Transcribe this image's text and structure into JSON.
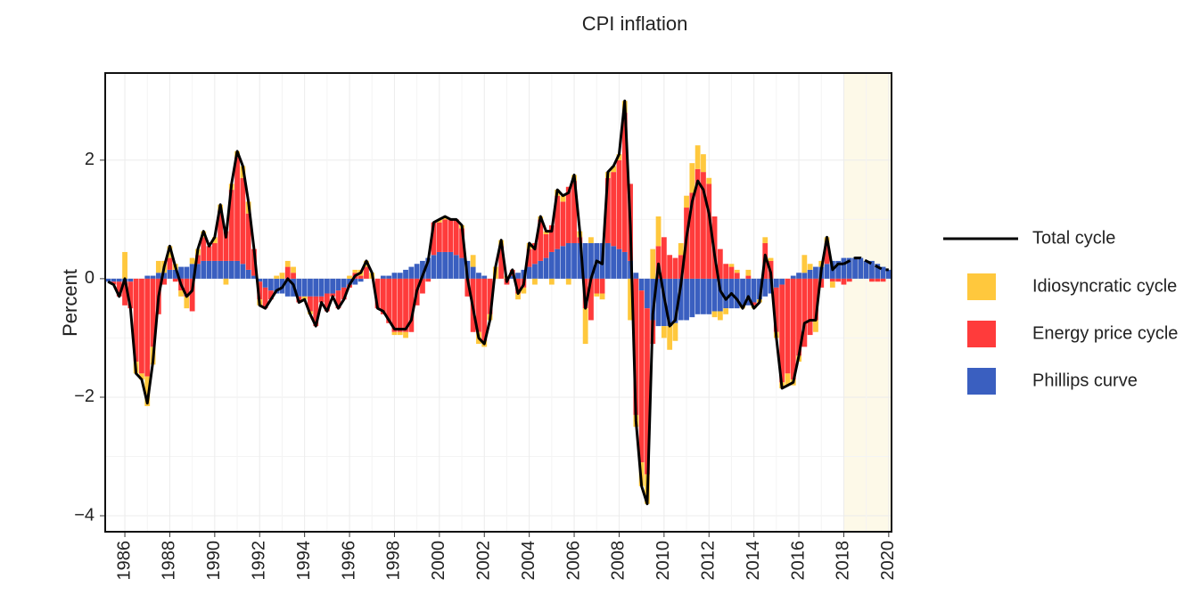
{
  "chart_data": {
    "type": "stacked-bar-line",
    "title": "CPI inflation",
    "y_label": "Percent",
    "xlim": [
      1985.125,
      2020.125
    ],
    "ylim": [
      -4.27,
      3.47
    ],
    "xticks": [
      1986,
      1988,
      1990,
      1992,
      1994,
      1996,
      1998,
      2000,
      2002,
      2004,
      2006,
      2008,
      2010,
      2012,
      2014,
      2016,
      2018,
      2020
    ],
    "yticks": [
      {
        "value": -4,
        "label": "−4"
      },
      {
        "value": -2,
        "label": "−2"
      },
      0,
      2
    ],
    "grid": true,
    "forecast_start": 2018,
    "forecast_color": "#fdf9e8",
    "legend": "right",
    "x": [
      1985.25,
      1985.5,
      1985.75,
      1986,
      1986.25,
      1986.5,
      1986.75,
      1987,
      1987.25,
      1987.5,
      1987.75,
      1988,
      1988.25,
      1988.5,
      1988.75,
      1989,
      1989.25,
      1989.5,
      1989.75,
      1990,
      1990.25,
      1990.5,
      1990.75,
      1991,
      1991.25,
      1991.5,
      1991.75,
      1992,
      1992.25,
      1992.5,
      1992.75,
      1993,
      1993.25,
      1993.5,
      1993.75,
      1994,
      1994.25,
      1994.5,
      1994.75,
      1995,
      1995.25,
      1995.5,
      1995.75,
      1996,
      1996.25,
      1996.5,
      1996.75,
      1997,
      1997.25,
      1997.5,
      1997.75,
      1998,
      1998.25,
      1998.5,
      1998.75,
      1999,
      1999.25,
      1999.5,
      1999.75,
      2000,
      2000.25,
      2000.5,
      2000.75,
      2001,
      2001.25,
      2001.5,
      2001.75,
      2002,
      2002.25,
      2002.5,
      2002.75,
      2003,
      2003.25,
      2003.5,
      2003.75,
      2004,
      2004.25,
      2004.5,
      2004.75,
      2005,
      2005.25,
      2005.5,
      2005.75,
      2006,
      2006.25,
      2006.5,
      2006.75,
      2007,
      2007.25,
      2007.5,
      2007.75,
      2008,
      2008.25,
      2008.5,
      2008.75,
      2009,
      2009.25,
      2009.5,
      2009.75,
      2010,
      2010.25,
      2010.5,
      2010.75,
      2011,
      2011.25,
      2011.5,
      2011.75,
      2012,
      2012.25,
      2012.5,
      2012.75,
      2013,
      2013.25,
      2013.5,
      2013.75,
      2014,
      2014.25,
      2014.5,
      2014.75,
      2015,
      2015.25,
      2015.5,
      2015.75,
      2016,
      2016.25,
      2016.5,
      2016.75,
      2017,
      2017.25,
      2017.5,
      2017.75,
      2018,
      2018.25,
      2018.5,
      2018.75,
      2019,
      2019.25,
      2019.5,
      2019.75,
      2020
    ],
    "series": [
      {
        "name": "Total cycle",
        "type": "line",
        "color": "#000000",
        "values": [
          -0.05,
          -0.1,
          -0.3,
          0,
          -0.5,
          -1.6,
          -1.7,
          -2.1,
          -1.4,
          -0.3,
          0.2,
          0.55,
          0.2,
          -0.1,
          -0.3,
          -0.2,
          0.5,
          0.8,
          0.55,
          0.7,
          1.25,
          0.7,
          1.6,
          2.15,
          1.9,
          1.3,
          0.5,
          -0.45,
          -0.5,
          -0.35,
          -0.2,
          -0.15,
          0,
          -0.1,
          -0.4,
          -0.35,
          -0.6,
          -0.8,
          -0.4,
          -0.55,
          -0.3,
          -0.5,
          -0.35,
          -0.1,
          0.05,
          0.1,
          0.3,
          0.1,
          -0.5,
          -0.55,
          -0.7,
          -0.85,
          -0.85,
          -0.85,
          -0.7,
          -0.2,
          0.05,
          0.3,
          0.95,
          1,
          1.05,
          1,
          1,
          0.9,
          0,
          -0.5,
          -1,
          -1.1,
          -0.7,
          0.2,
          0.65,
          -0.05,
          0.15,
          -0.25,
          -0.1,
          0.6,
          0.5,
          1.05,
          0.8,
          0.8,
          1.5,
          1.4,
          1.45,
          1.75,
          0.8,
          -0.5,
          0,
          0.3,
          0.25,
          1.8,
          1.9,
          2.1,
          3,
          0.9,
          -2.4,
          -3.5,
          -3.8,
          -0.6,
          0.25,
          -0.3,
          -0.8,
          -0.7,
          -0.1,
          0.7,
          1.3,
          1.65,
          1.5,
          1.1,
          0.4,
          -0.2,
          -0.35,
          -0.25,
          -0.35,
          -0.5,
          -0.3,
          -0.5,
          -0.4,
          0.4,
          0.1,
          -1,
          -1.85,
          -1.8,
          -1.75,
          -1.3,
          -0.75,
          -0.7,
          -0.7,
          0.15,
          0.7,
          0.15,
          0.25,
          0.25,
          0.3,
          0.35,
          0.35,
          0.3,
          0.25,
          0.2,
          0.15,
          0.15
        ]
      },
      {
        "name": "Idiosyncratic cycle",
        "type": "bar",
        "color": "#ffc83d",
        "values": [
          0,
          0,
          0,
          0.45,
          0,
          -0.2,
          -0.1,
          -0.5,
          -0.3,
          0.2,
          0.2,
          0.2,
          0.1,
          -0.1,
          -0.2,
          0.1,
          0.1,
          0.1,
          0,
          0.1,
          0.1,
          -0.1,
          0.1,
          0.1,
          0.2,
          0.2,
          0,
          -0.1,
          0,
          0,
          0.05,
          0.1,
          0.1,
          0.1,
          0,
          -0.05,
          -0.05,
          0,
          0,
          0,
          0,
          0,
          0,
          0.05,
          0.05,
          0.1,
          0.1,
          0.1,
          0,
          0,
          0,
          -0.05,
          -0.05,
          -0.1,
          0,
          0,
          0,
          0,
          0,
          0.05,
          0.05,
          0,
          0,
          0.05,
          0,
          0.2,
          -0.2,
          -0.1,
          -0.1,
          0.2,
          0.1,
          0.05,
          0,
          -0.1,
          -0.1,
          0.1,
          -0.1,
          0.05,
          0.05,
          -0.1,
          0.1,
          0.1,
          -0.1,
          0.1,
          0.1,
          -0.6,
          0.1,
          -0.05,
          -0.1,
          0.1,
          0.1,
          0.1,
          0.2,
          -0.7,
          -0.2,
          -0.4,
          -0.5,
          0.5,
          0.5,
          -0.2,
          -0.4,
          -0.3,
          0.2,
          0.2,
          0.5,
          0.4,
          0.3,
          0.1,
          -0.1,
          -0.15,
          -0.1,
          0.05,
          0.05,
          -0.05,
          0.1,
          -0.05,
          -0.05,
          0.1,
          0.05,
          -0.1,
          -0.1,
          -0.2,
          -0.1,
          -0.1,
          0.3,
          0.1,
          -0.2,
          0.1,
          0.1,
          -0.1,
          0,
          0,
          0,
          0,
          0,
          0,
          0,
          0,
          0,
          0
        ]
      },
      {
        "name": "Energy price cycle",
        "type": "bar",
        "color": "#ff3b3b",
        "values": [
          0,
          -0.05,
          -0.25,
          -0.4,
          -0.45,
          -1.4,
          -1.6,
          -1.65,
          -1.15,
          -0.6,
          -0.1,
          0.2,
          -0.05,
          -0.2,
          -0.3,
          -0.55,
          0.15,
          0.4,
          0.25,
          0.3,
          0.85,
          0.5,
          1.2,
          1.75,
          1.45,
          0.95,
          0.45,
          -0.3,
          -0.35,
          -0.15,
          0,
          0,
          0.2,
          0.1,
          -0.1,
          0,
          -0.25,
          -0.5,
          -0.1,
          -0.3,
          -0.05,
          -0.3,
          -0.2,
          -0.05,
          0.1,
          0.05,
          0.2,
          0,
          -0.5,
          -0.6,
          -0.75,
          -0.9,
          -0.9,
          -0.9,
          -0.9,
          -0.45,
          -0.25,
          -0.05,
          0.55,
          0.5,
          0.55,
          0.55,
          0.6,
          0.5,
          -0.3,
          -0.9,
          -0.9,
          -1.05,
          -0.6,
          0,
          0.55,
          -0.1,
          0.1,
          -0.25,
          -0.15,
          0.3,
          0.35,
          0.7,
          0.4,
          0.45,
          0.9,
          0.75,
          0.95,
          1.05,
          0.1,
          -0.5,
          -0.7,
          -0.25,
          -0.25,
          1.1,
          1.25,
          1.5,
          2.35,
          1.3,
          -2.3,
          -2.9,
          -2.8,
          -0.4,
          0.55,
          0.7,
          0.4,
          0.35,
          0.4,
          1.2,
          1.45,
          1.85,
          1.8,
          1.6,
          1.05,
          0.5,
          0.25,
          0.2,
          0.1,
          0,
          0.05,
          -0.05,
          0,
          0.6,
          0.3,
          -0.75,
          -1.65,
          -1.6,
          -1.7,
          -1.3,
          -1.15,
          -0.95,
          -0.7,
          -0.15,
          0.35,
          -0.05,
          -0.05,
          -0.1,
          -0.05,
          0,
          0,
          0,
          -0.05,
          -0.05,
          -0.05,
          0
        ]
      },
      {
        "name": "Phillips curve",
        "type": "bar",
        "color": "#3a5fc0",
        "values": [
          -0.05,
          -0.05,
          -0.05,
          -0.05,
          -0.05,
          0,
          0,
          0.05,
          0.05,
          0.1,
          0.1,
          0.15,
          0.15,
          0.2,
          0.2,
          0.25,
          0.25,
          0.3,
          0.3,
          0.3,
          0.3,
          0.3,
          0.3,
          0.3,
          0.25,
          0.15,
          0.05,
          -0.05,
          -0.15,
          -0.2,
          -0.25,
          -0.25,
          -0.3,
          -0.3,
          -0.3,
          -0.3,
          -0.3,
          -0.3,
          -0.3,
          -0.25,
          -0.25,
          -0.2,
          -0.15,
          -0.1,
          -0.1,
          -0.05,
          0,
          0,
          0,
          0.05,
          0.05,
          0.1,
          0.1,
          0.15,
          0.2,
          0.25,
          0.3,
          0.35,
          0.4,
          0.45,
          0.45,
          0.45,
          0.4,
          0.35,
          0.3,
          0.2,
          0.1,
          0.05,
          0,
          0,
          0,
          0,
          0.05,
          0.1,
          0.15,
          0.2,
          0.25,
          0.3,
          0.35,
          0.45,
          0.5,
          0.55,
          0.6,
          0.6,
          0.6,
          0.6,
          0.6,
          0.6,
          0.6,
          0.6,
          0.55,
          0.5,
          0.45,
          0.3,
          0.1,
          -0.2,
          -0.5,
          -0.7,
          -0.8,
          -0.8,
          -0.8,
          -0.75,
          -0.7,
          -0.7,
          -0.65,
          -0.6,
          -0.6,
          -0.6,
          -0.55,
          -0.55,
          -0.5,
          -0.5,
          -0.5,
          -0.45,
          -0.45,
          -0.4,
          -0.35,
          -0.3,
          -0.25,
          -0.15,
          -0.1,
          0,
          0.05,
          0.1,
          0.1,
          0.15,
          0.2,
          0.2,
          0.25,
          0.3,
          0.3,
          0.35,
          0.35,
          0.35,
          0.35,
          0.3,
          0.3,
          0.25,
          0.2,
          0.15
        ]
      }
    ]
  }
}
